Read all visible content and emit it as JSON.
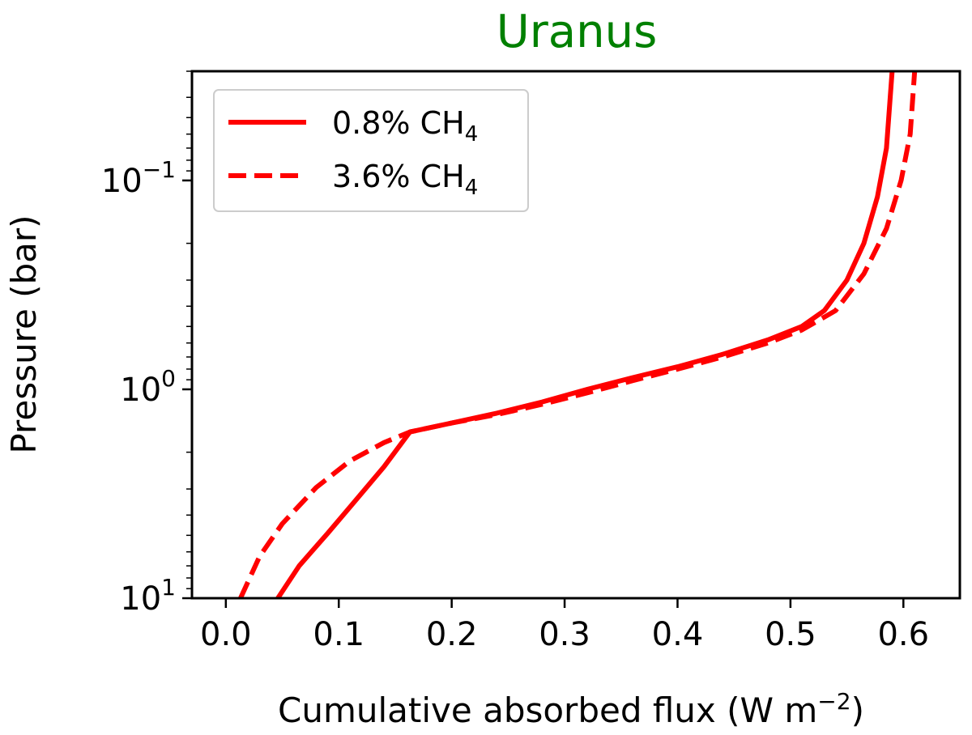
{
  "chart_data": {
    "type": "line",
    "title": "Uranus",
    "title_color": "#008000",
    "xlabel": "Cumulative absorbed flux (W m",
    "xlabel_sup": "−2",
    "xlabel_end": ")",
    "ylabel": "Pressure (bar)",
    "xlim": [
      -0.03,
      0.65
    ],
    "ylim": [
      10,
      0.03
    ],
    "y_scale": "log",
    "y_inverted": true,
    "x_ticks": [
      0.0,
      0.1,
      0.2,
      0.3,
      0.4,
      0.5,
      0.6
    ],
    "x_tick_labels": [
      "0.0",
      "0.1",
      "0.2",
      "0.3",
      "0.4",
      "0.5",
      "0.6"
    ],
    "y_ticks": [
      {
        "value": 0.1,
        "base": "10",
        "exp": "−1"
      },
      {
        "value": 1,
        "base": "10",
        "exp": "0"
      },
      {
        "value": 10,
        "base": "10",
        "exp": "1"
      }
    ],
    "grid": false,
    "legend_position": "top-left",
    "series": [
      {
        "name": "0.8% CH",
        "name_sub": "4",
        "color": "#ff0000",
        "style": "solid",
        "x": [
          0.046,
          0.065,
          0.09,
          0.115,
          0.14,
          0.163,
          0.2,
          0.24,
          0.28,
          0.32,
          0.36,
          0.4,
          0.44,
          0.48,
          0.51,
          0.53,
          0.55,
          0.565,
          0.577,
          0.585,
          0.59
        ],
        "y": [
          10,
          7.0,
          4.9,
          3.4,
          2.35,
          1.6,
          1.45,
          1.3,
          1.15,
          1.0,
          0.88,
          0.78,
          0.68,
          0.58,
          0.5,
          0.42,
          0.3,
          0.2,
          0.12,
          0.07,
          0.03
        ]
      },
      {
        "name": "3.6% CH",
        "name_sub": "4",
        "color": "#ff0000",
        "style": "dashed",
        "x": [
          0.013,
          0.03,
          0.05,
          0.08,
          0.11,
          0.14,
          0.163,
          0.2,
          0.24,
          0.28,
          0.32,
          0.36,
          0.4,
          0.44,
          0.48,
          0.51,
          0.54,
          0.565,
          0.585,
          0.598,
          0.606,
          0.61
        ],
        "y": [
          10,
          6.3,
          4.4,
          2.95,
          2.2,
          1.8,
          1.6,
          1.45,
          1.32,
          1.18,
          1.04,
          0.91,
          0.8,
          0.7,
          0.6,
          0.52,
          0.42,
          0.28,
          0.17,
          0.1,
          0.06,
          0.03
        ]
      }
    ]
  }
}
